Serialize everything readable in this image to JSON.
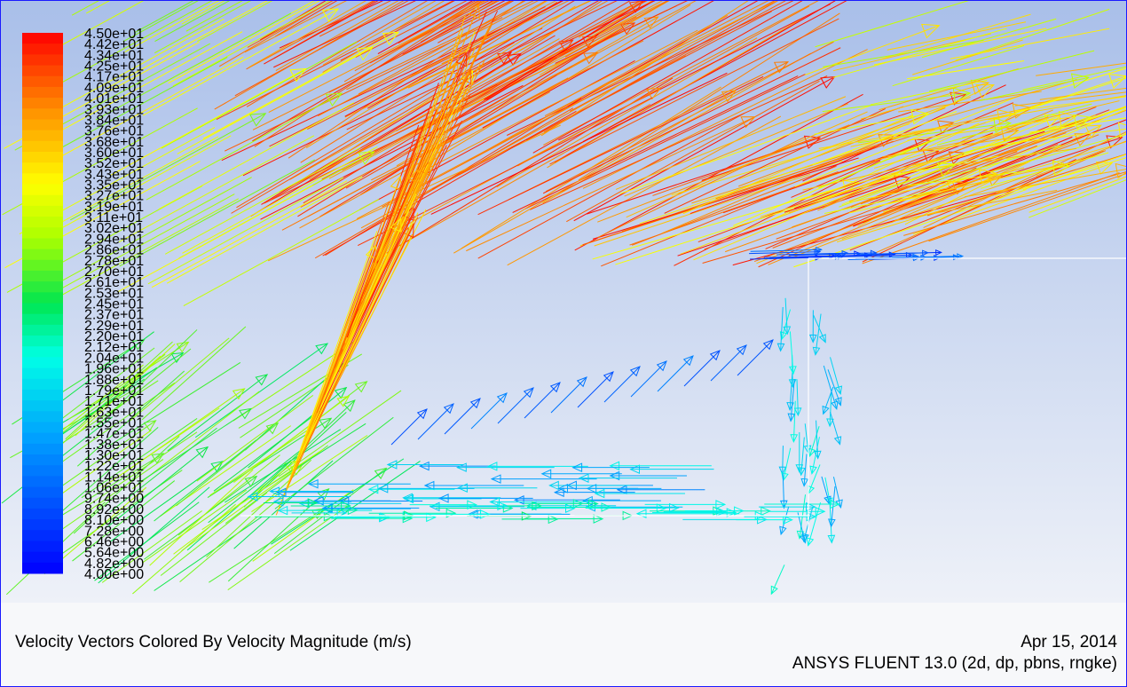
{
  "chart_data": {
    "type": "vector-field",
    "title": "Velocity Vectors Colored By Velocity Magnitude (m/s)",
    "colorbar": {
      "min": 4.0,
      "max": 45.0,
      "tick_labels": [
        "4.50e+01",
        "4.42e+01",
        "4.34e+01",
        "4.25e+01",
        "4.17e+01",
        "4.09e+01",
        "4.01e+01",
        "3.93e+01",
        "3.84e+01",
        "3.76e+01",
        "3.68e+01",
        "3.60e+01",
        "3.52e+01",
        "3.43e+01",
        "3.35e+01",
        "3.27e+01",
        "3.19e+01",
        "3.11e+01",
        "3.02e+01",
        "2.94e+01",
        "2.86e+01",
        "2.78e+01",
        "2.70e+01",
        "2.61e+01",
        "2.53e+01",
        "2.45e+01",
        "2.37e+01",
        "2.29e+01",
        "2.20e+01",
        "2.12e+01",
        "2.04e+01",
        "1.96e+01",
        "1.88e+01",
        "1.79e+01",
        "1.71e+01",
        "1.63e+01",
        "1.55e+01",
        "1.47e+01",
        "1.38e+01",
        "1.30e+01",
        "1.22e+01",
        "1.14e+01",
        "1.06e+01",
        "9.74e+00",
        "8.92e+00",
        "8.10e+00",
        "7.28e+00",
        "6.46e+00",
        "5.64e+00",
        "4.82e+00",
        "4.00e+00"
      ]
    }
  },
  "footer": {
    "date": "Apr 15, 2014",
    "version": "ANSYS FLUENT 13.0 (2d, dp, pbns, rngke)"
  }
}
